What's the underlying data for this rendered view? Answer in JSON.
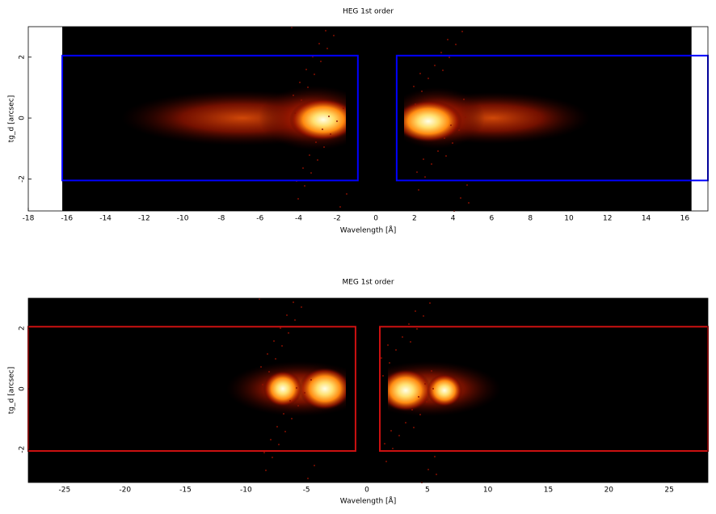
{
  "chart_data": [
    {
      "type": "heatmap",
      "title": "HEG 1st order",
      "xlabel": "Wavelength [Å]",
      "ylabel": "tg_d [arcsec]",
      "xlim": [
        -18,
        17.2
      ],
      "ylim": [
        -3.05,
        3.0
      ],
      "xticks": [
        -18,
        -16,
        -14,
        -12,
        -10,
        -8,
        -6,
        -4,
        -2,
        0,
        2,
        4,
        6,
        8,
        10,
        12,
        14,
        16
      ],
      "yticks": [
        -2,
        0,
        2
      ],
      "extent": [
        -16.24,
        16.35
      ],
      "region_color": "#0000ff",
      "regions": [
        {
          "x": [
            -16.24,
            -0.93
          ],
          "y": [
            -2.05,
            2.05
          ]
        },
        {
          "x": [
            1.08,
            17.2
          ],
          "y": [
            -2.05,
            2.05
          ]
        }
      ]
    },
    {
      "type": "heatmap",
      "title": "MEG 1st order",
      "xlabel": "Wavelength [Å]",
      "ylabel": "tg_d [arcsec]",
      "xlim": [
        -28,
        28.2
      ],
      "ylim": [
        -3.09,
        2.99
      ],
      "xticks": [
        -25,
        -20,
        -15,
        -10,
        -5,
        0,
        5,
        10,
        15,
        20,
        25
      ],
      "yticks": [
        -2,
        0,
        2
      ],
      "extent": [
        -28,
        28.2
      ],
      "region_color": "#cc1111",
      "regions": [
        {
          "x": [
            -28,
            -0.94
          ],
          "y": [
            -2.05,
            2.05
          ]
        },
        {
          "x": [
            1.07,
            28.2
          ],
          "y": [
            -2.05,
            2.05
          ]
        }
      ]
    }
  ]
}
